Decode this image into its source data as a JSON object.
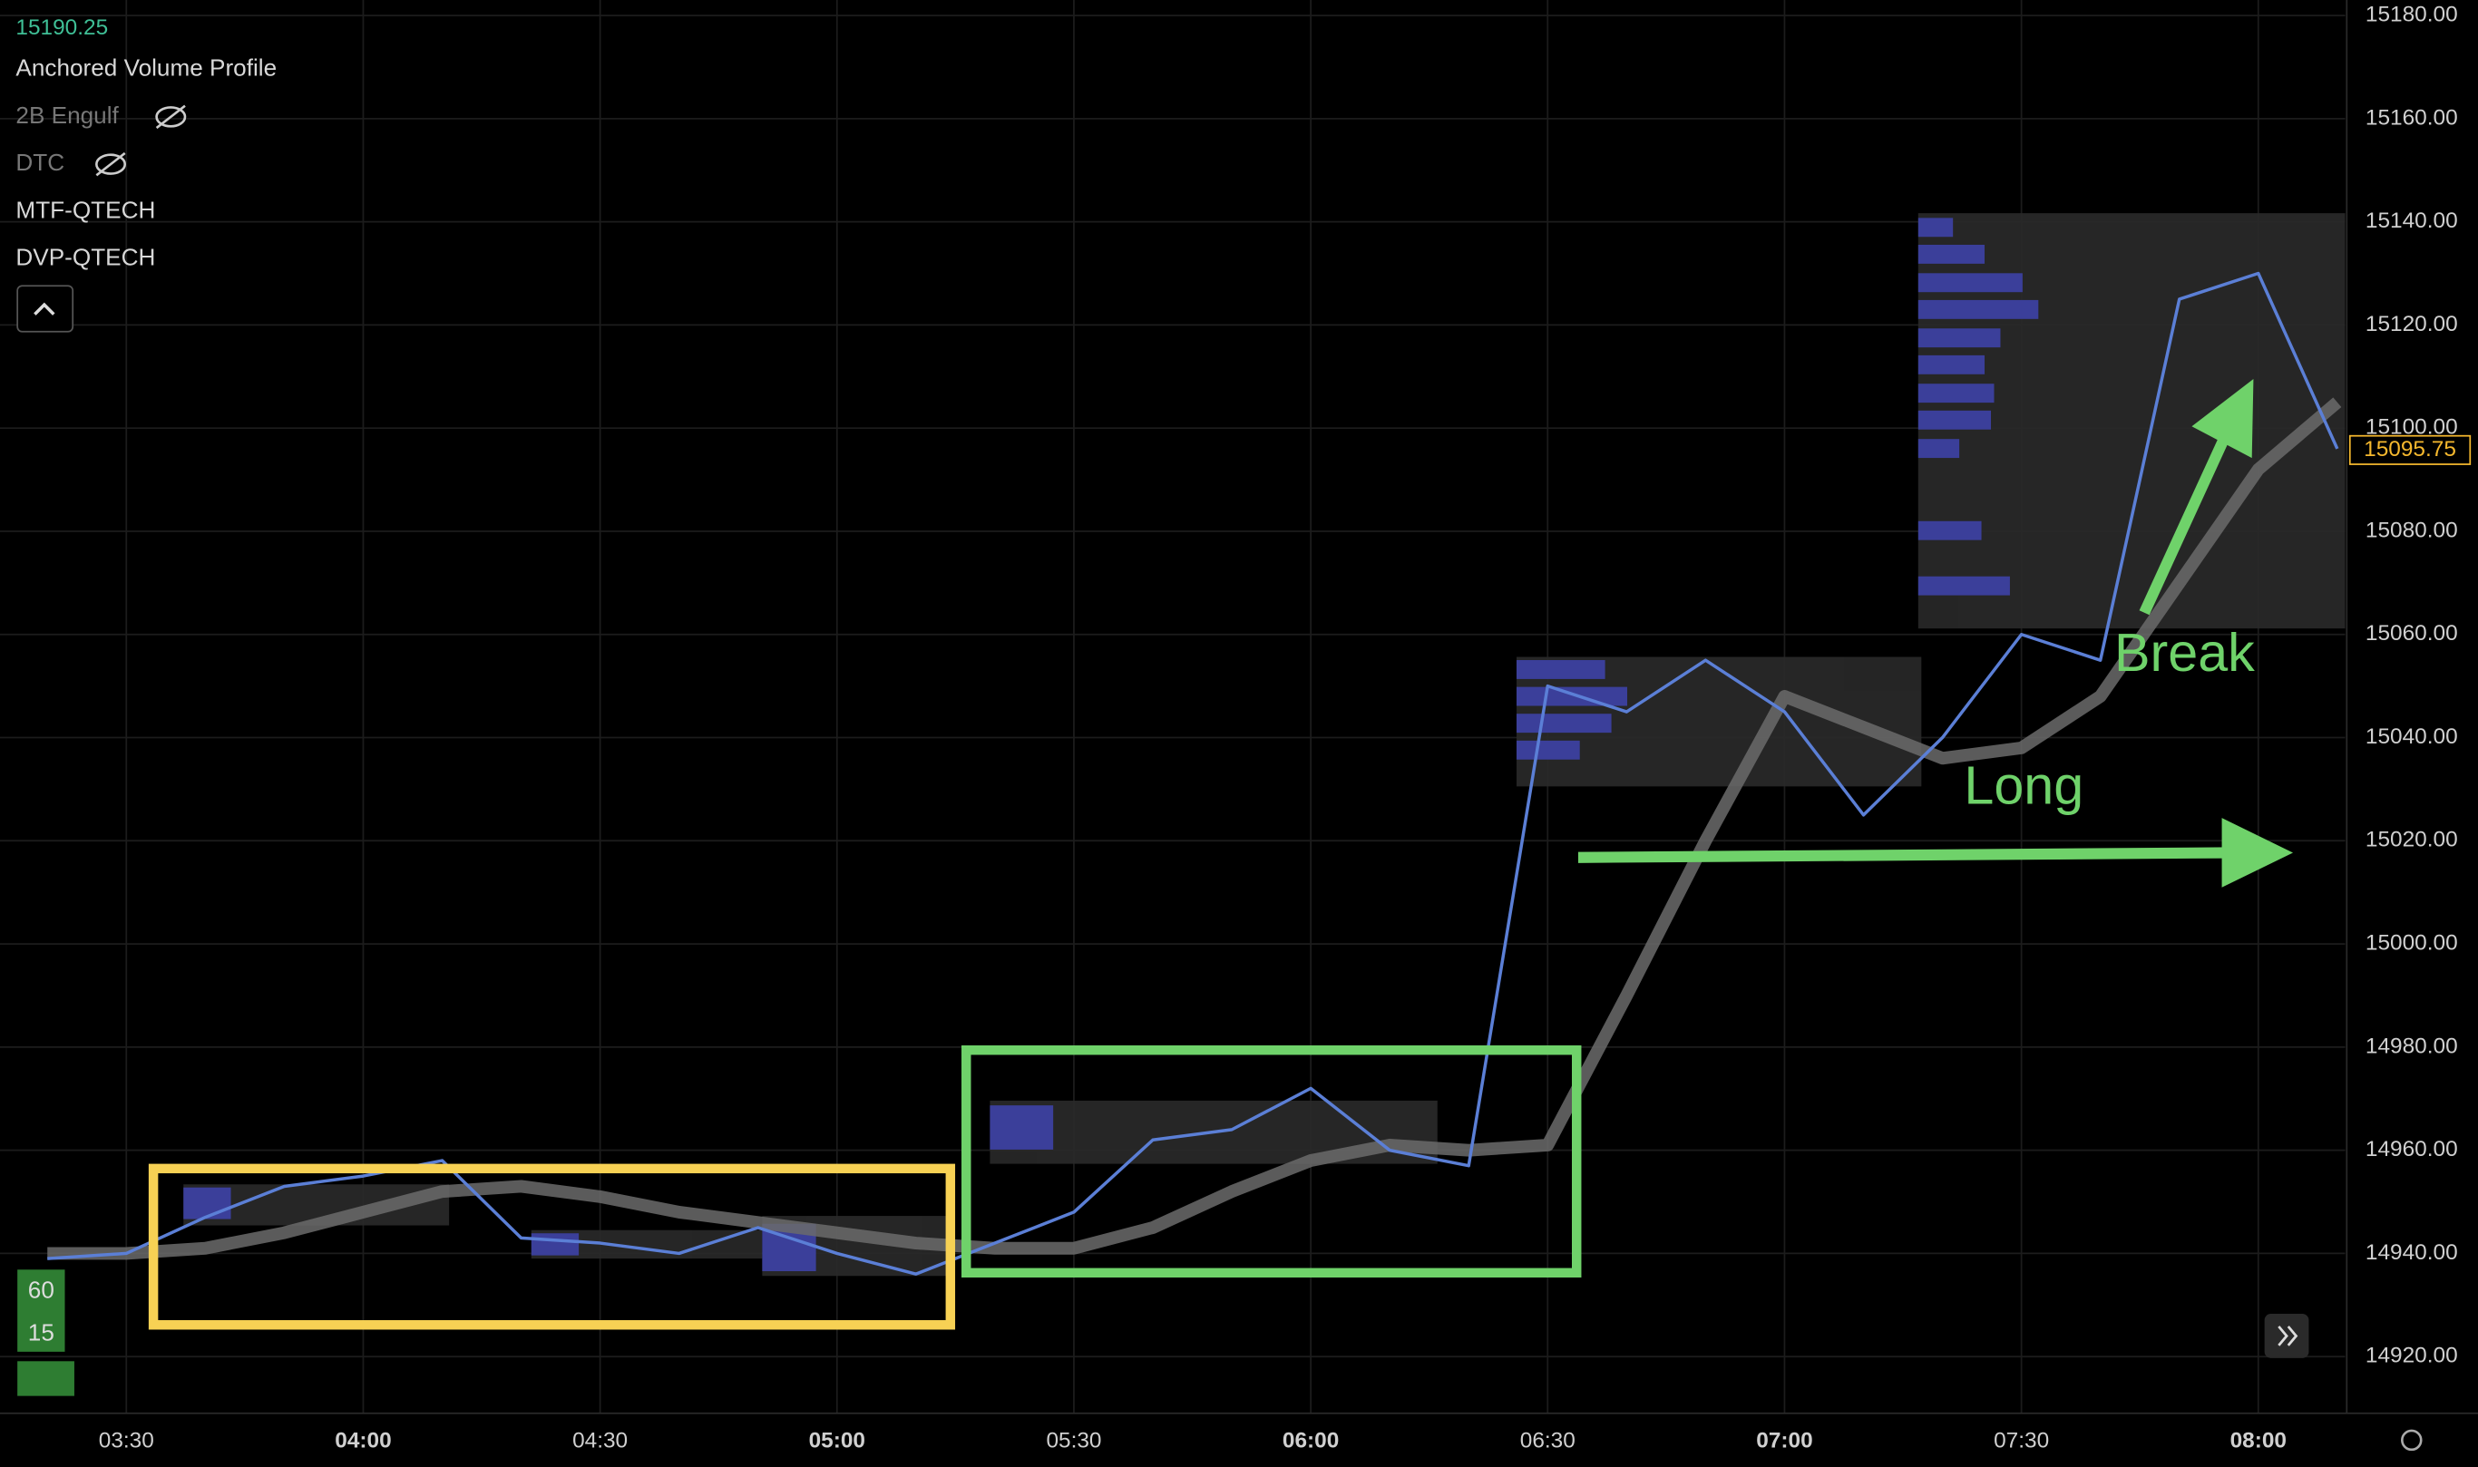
{
  "chart_data": {
    "type": "line",
    "header_price": 15190.25,
    "indicators": [
      "Anchored Volume Profile",
      "2B Engulf",
      "DTC",
      "MTF-QTECH",
      "DVP-QTECH"
    ],
    "annotations": [
      "Long",
      "Break"
    ],
    "interval_badges": [
      60,
      15
    ],
    "last_price": 15095.75,
    "x": [
      "03:20",
      "03:30",
      "03:40",
      "03:50",
      "04:00",
      "04:10",
      "04:20",
      "04:30",
      "04:40",
      "04:50",
      "05:00",
      "05:10",
      "05:20",
      "05:30",
      "05:40",
      "05:50",
      "06:00",
      "06:10",
      "06:20",
      "06:30",
      "06:40",
      "06:50",
      "07:00",
      "07:10",
      "07:20",
      "07:30",
      "07:40",
      "07:50",
      "08:00",
      "08:10"
    ],
    "series": [
      {
        "name": "Price",
        "color": "#5b7fd6",
        "values": [
          14939,
          14940,
          14947,
          14953,
          14955,
          14958,
          14943,
          14942,
          14940,
          14945,
          14940,
          14936,
          14942,
          14948,
          14962,
          14964,
          14972,
          14960,
          14957,
          15050,
          15045,
          15055,
          15045,
          15025,
          15040,
          15060,
          15055,
          15125,
          15130,
          15096
        ]
      },
      {
        "name": "EMA",
        "color": "#6b6b6b",
        "values": [
          14940,
          14940,
          14941,
          14944,
          14948,
          14952,
          14953,
          14951,
          14948,
          14946,
          14944,
          14942,
          14941,
          14941,
          14945,
          14952,
          14958,
          14961,
          14960,
          14961,
          14990,
          15020,
          15048,
          15042,
          15036,
          15038,
          15048,
          15070,
          15092,
          15105
        ]
      }
    ],
    "xlim": [
      "03:14",
      "08:11"
    ],
    "xticks": [
      "03:30",
      "04:00",
      "04:30",
      "05:00",
      "05:30",
      "06:00",
      "06:30",
      "07:00",
      "07:30",
      "08:00"
    ],
    "ylim": [
      14909,
      15183
    ],
    "yticks": [
      {
        "value": 14920,
        "label": "14920.00"
      },
      {
        "value": 14940,
        "label": "14940.00"
      },
      {
        "value": 14960,
        "label": "14960.00"
      },
      {
        "value": 14980,
        "label": "14980.00"
      },
      {
        "value": 15000,
        "label": "15000.00"
      },
      {
        "value": 15020,
        "label": "15020.00"
      },
      {
        "value": 15040,
        "label": "15040.00"
      },
      {
        "value": 15060,
        "label": "15060.00"
      },
      {
        "value": 15080,
        "label": "15080.00"
      },
      {
        "value": 15100,
        "label": "15100.00"
      },
      {
        "value": 15120,
        "label": "15120.00"
      },
      {
        "value": 15140,
        "label": "15140.00"
      },
      {
        "value": 15160,
        "label": "15160.00"
      },
      {
        "value": 15180,
        "label": "15180.00"
      }
    ],
    "grid": true
  }
}
